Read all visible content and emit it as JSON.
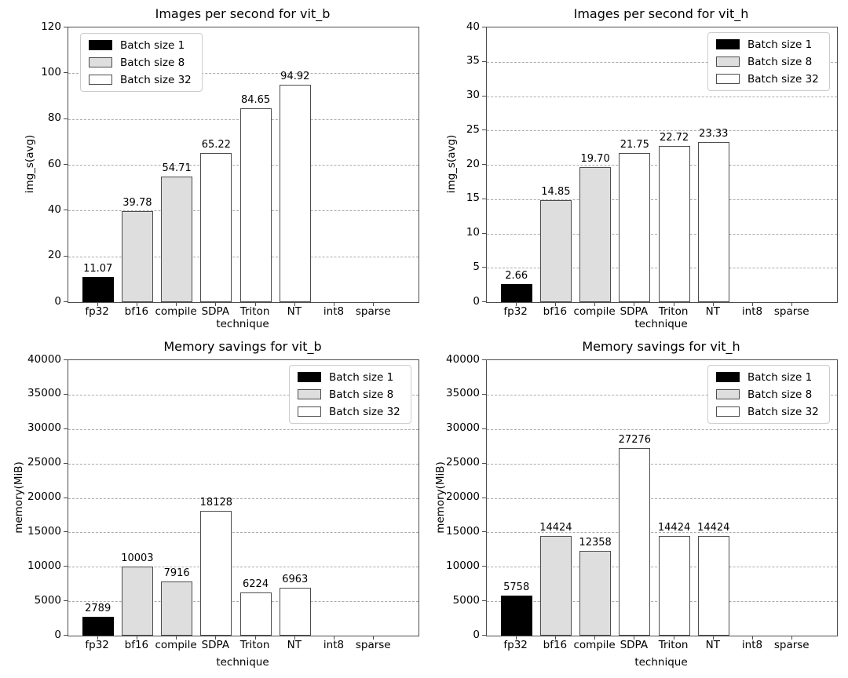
{
  "colors": {
    "batch1": "#000000",
    "batch8": "#dedede",
    "batch32": "#ffffff",
    "bar_edge": "#4d4d4d",
    "grid_line": "#ababab",
    "axis_spine": "#4d4d4d",
    "legend_border": "#cccccc",
    "background": "#ffffff",
    "text": "#000000"
  },
  "legend": {
    "entries": [
      {
        "label": "Batch size 1",
        "style": "batch1"
      },
      {
        "label": "Batch size 8",
        "style": "batch8"
      },
      {
        "label": "Batch size 32",
        "style": "batch32"
      }
    ]
  },
  "chart_data": [
    {
      "type": "bar",
      "title": "Images per second for vit_b",
      "xlabel": "technique",
      "ylabel": "img_s(avg)",
      "categories": [
        "fp32",
        "bf16",
        "compile",
        "SDPA",
        "Triton",
        "NT",
        "int8",
        "sparse"
      ],
      "values": [
        11.07,
        39.78,
        54.71,
        65.22,
        84.65,
        94.92,
        null,
        null
      ],
      "value_labels": [
        "11.07",
        "39.78",
        "54.71",
        "65.22",
        "84.65",
        "94.92",
        "",
        ""
      ],
      "bar_styles": [
        "batch1",
        "batch8",
        "batch8",
        "batch32",
        "batch32",
        "batch32",
        null,
        null
      ],
      "ylim": [
        0,
        120
      ],
      "yticks": [
        0,
        20,
        40,
        60,
        80,
        100,
        120
      ],
      "grid": true,
      "legend_position": "upper-left"
    },
    {
      "type": "bar",
      "title": "Images per second for vit_h",
      "xlabel": "technique",
      "ylabel": "img_s(avg)",
      "categories": [
        "fp32",
        "bf16",
        "compile",
        "SDPA",
        "Triton",
        "NT",
        "int8",
        "sparse"
      ],
      "values": [
        2.66,
        14.85,
        19.7,
        21.75,
        22.72,
        23.33,
        null,
        null
      ],
      "value_labels": [
        "2.66",
        "14.85",
        "19.70",
        "21.75",
        "22.72",
        "23.33",
        "",
        ""
      ],
      "bar_styles": [
        "batch1",
        "batch8",
        "batch8",
        "batch32",
        "batch32",
        "batch32",
        null,
        null
      ],
      "ylim": [
        0,
        40
      ],
      "yticks": [
        0,
        5,
        10,
        15,
        20,
        25,
        30,
        35,
        40
      ],
      "grid": true,
      "legend_position": "upper-right"
    },
    {
      "type": "bar",
      "title": "Memory savings for vit_b",
      "xlabel": "technique",
      "ylabel": "memory(MiB)",
      "categories": [
        "fp32",
        "bf16",
        "compile",
        "SDPA",
        "Triton",
        "NT",
        "int8",
        "sparse"
      ],
      "values": [
        2789,
        10003,
        7916,
        18128,
        6224,
        6963,
        null,
        null
      ],
      "value_labels": [
        "2789",
        "10003",
        "7916",
        "18128",
        "6224",
        "6963",
        "",
        ""
      ],
      "bar_styles": [
        "batch1",
        "batch8",
        "batch8",
        "batch32",
        "batch32",
        "batch32",
        null,
        null
      ],
      "ylim": [
        0,
        40000
      ],
      "yticks": [
        0,
        5000,
        10000,
        15000,
        20000,
        25000,
        30000,
        35000,
        40000
      ],
      "grid": true,
      "legend_position": "upper-right"
    },
    {
      "type": "bar",
      "title": "Memory savings for vit_h",
      "xlabel": "technique",
      "ylabel": "memory(MiB)",
      "categories": [
        "fp32",
        "bf16",
        "compile",
        "SDPA",
        "Triton",
        "NT",
        "int8",
        "sparse"
      ],
      "values": [
        5758,
        14424,
        12358,
        27276,
        14424,
        14424,
        null,
        null
      ],
      "value_labels": [
        "5758",
        "14424",
        "12358",
        "27276",
        "14424",
        "14424",
        "",
        ""
      ],
      "bar_styles": [
        "batch1",
        "batch8",
        "batch8",
        "batch32",
        "batch32",
        "batch32",
        null,
        null
      ],
      "ylim": [
        0,
        40000
      ],
      "yticks": [
        0,
        5000,
        10000,
        15000,
        20000,
        25000,
        30000,
        35000,
        40000
      ],
      "grid": true,
      "legend_position": "upper-right"
    }
  ]
}
